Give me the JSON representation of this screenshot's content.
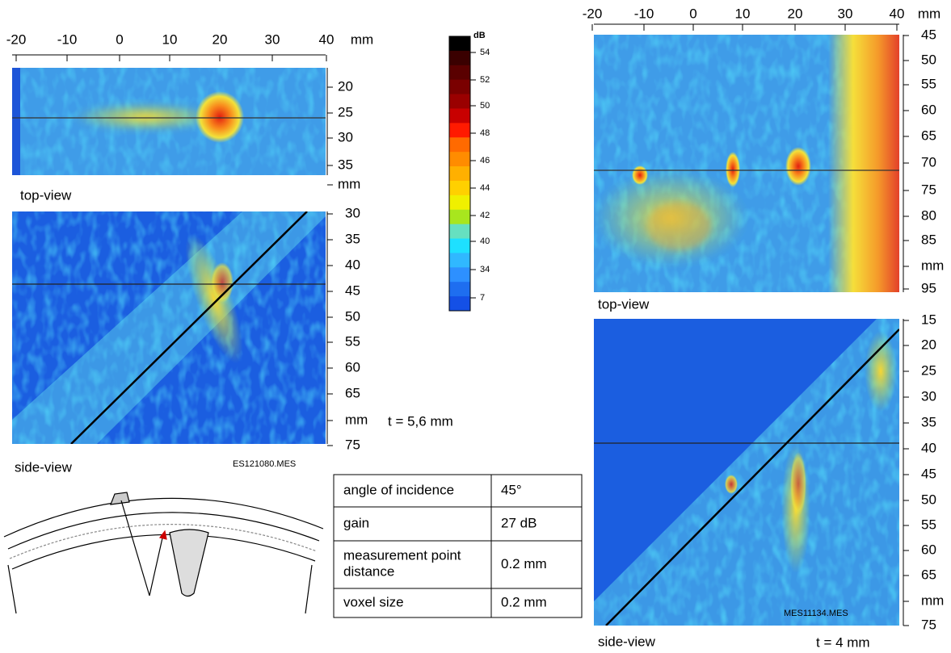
{
  "left": {
    "top_axis": [
      "-20",
      "-10",
      "0",
      "10",
      "20",
      "30",
      "40",
      "mm"
    ],
    "top_view": {
      "y_axis": [
        "20",
        "25",
        "30",
        "35",
        "mm"
      ],
      "label": "top-view"
    },
    "side_view": {
      "y_axis": [
        "30",
        "35",
        "40",
        "45",
        "50",
        "55",
        "60",
        "65",
        "mm",
        "75"
      ],
      "label": "side-view"
    },
    "thickness": "t = 5,6 mm",
    "file": "ES121080.MES"
  },
  "colorbar": {
    "unit": "dB",
    "labels": [
      "54",
      "52",
      "50",
      "48",
      "46",
      "44",
      "42",
      "40",
      "34",
      "7"
    ]
  },
  "table": {
    "rows": [
      [
        "angle of incidence",
        "45°"
      ],
      [
        "gain",
        "27 dB"
      ],
      [
        "measurement point distance",
        "0.2 mm"
      ],
      [
        "voxel size",
        "0.2 mm"
      ]
    ]
  },
  "right": {
    "top_axis": [
      "-20",
      "-10",
      "0",
      "10",
      "20",
      "30",
      "40",
      "mm"
    ],
    "top_view": {
      "y_axis": [
        "45",
        "50",
        "55",
        "60",
        "65",
        "70",
        "75",
        "80",
        "85",
        "mm",
        "95"
      ],
      "label": "top-view"
    },
    "side_view": {
      "y_axis": [
        "15",
        "20",
        "25",
        "30",
        "35",
        "40",
        "45",
        "50",
        "55",
        "60",
        "65",
        "mm",
        "75"
      ],
      "label": "side-view"
    },
    "thickness": "t = 4 mm",
    "file": "MES11134.MES"
  }
}
